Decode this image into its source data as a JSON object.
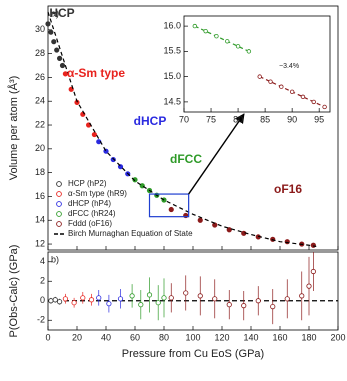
{
  "chart_data": [
    {
      "type": "scatter",
      "panel_label": "a)",
      "y_label": "Volume per atom (Å³)",
      "xlim": [
        0,
        200
      ],
      "xticks": [
        0,
        20,
        40,
        60,
        80,
        100,
        120,
        140,
        160,
        180,
        200
      ],
      "ylim": [
        11.5,
        32
      ],
      "yticks": [
        12,
        14,
        16,
        18,
        20,
        22,
        24,
        26,
        28,
        30
      ],
      "legend": "lower left",
      "annotations": [
        "HCP",
        "α-Sm type",
        "dHCP",
        "dFCC",
        "oF16"
      ],
      "series": [
        {
          "name": "HCP (hP2)",
          "color": "#333333",
          "marker": "circle",
          "x": [
            0,
            2,
            4,
            6,
            8,
            10
          ],
          "values": [
            30.5,
            29.8,
            29.0,
            28.3,
            27.6,
            27.0
          ]
        },
        {
          "name": "α-Sm type (hR9)",
          "color": "#e8231e",
          "marker": "circle",
          "x": [
            12,
            16,
            20,
            24,
            28,
            32
          ],
          "values": [
            26.3,
            25.0,
            23.9,
            22.9,
            22.0,
            21.2
          ]
        },
        {
          "name": "dHCP (hP4)",
          "color": "#2a2ae0",
          "marker": "circle",
          "x": [
            35,
            40,
            45,
            50,
            55
          ],
          "values": [
            20.6,
            19.8,
            19.1,
            18.5,
            17.9
          ]
        },
        {
          "name": "dFCC (hR24)",
          "color": "#2e9a28",
          "marker": "circle",
          "x": [
            60,
            65,
            70,
            75,
            80
          ],
          "values": [
            17.4,
            16.9,
            16.5,
            16.1,
            15.7
          ]
        },
        {
          "name": "Fddd (oF16)",
          "color": "#8b1a1a",
          "marker": "circle",
          "x": [
            85,
            95,
            105,
            115,
            125,
            135,
            145,
            155,
            165,
            175,
            183
          ],
          "values": [
            14.9,
            14.4,
            14.0,
            13.6,
            13.2,
            12.9,
            12.6,
            12.4,
            12.2,
            12.0,
            11.9
          ]
        },
        {
          "name": "Birch Murnaghan Equation of State",
          "color": "#000000",
          "line": "dashed",
          "x": [
            0,
            20,
            40,
            60,
            80,
            100,
            120,
            140,
            160,
            180,
            185
          ],
          "values": [
            31.5,
            24.0,
            19.8,
            17.3,
            15.7,
            14.5,
            13.5,
            12.8,
            12.2,
            11.9,
            11.8
          ]
        }
      ]
    },
    {
      "type": "scatter",
      "xlim": [
        70,
        97
      ],
      "xticks": [
        70,
        75,
        80,
        85,
        90,
        95
      ],
      "ylim": [
        14.3,
        16.2
      ],
      "yticks": [
        14.5,
        {
          "value": 15,
          "label": "15.0"
        },
        15.5,
        {
          "value": 16,
          "label": "16.0"
        }
      ],
      "annotation": "−3.4%",
      "series": [
        {
          "color": "#2e9a28",
          "marker": "circle",
          "line": "dashed",
          "x": [
            72,
            74,
            76,
            78,
            80,
            82
          ],
          "values": [
            16.0,
            15.9,
            15.8,
            15.7,
            15.6,
            15.5
          ]
        },
        {
          "color": "#8b1a1a",
          "marker": "circle",
          "line": "dashed",
          "x": [
            84,
            86,
            88,
            90,
            92,
            94,
            96
          ],
          "values": [
            15.0,
            14.9,
            14.8,
            14.7,
            14.6,
            14.5,
            14.4
          ]
        }
      ]
    },
    {
      "type": "errorbar",
      "panel_label": "b)",
      "x_label": "Pressure from Cu EoS (GPa)",
      "y_label": "P(Obs-Calc) (GPa)",
      "xlim": [
        0,
        200
      ],
      "xticks": [
        0,
        20,
        40,
        60,
        80,
        100,
        120,
        140,
        160,
        180,
        200
      ],
      "ylim": [
        -3,
        5
      ],
      "yticks": [
        -2,
        0,
        2,
        4
      ],
      "reference_line": 0,
      "series": [
        {
          "color": "#333333",
          "x": [
            2,
            5,
            8
          ],
          "values": [
            0,
            0.1,
            -0.1
          ],
          "errors": [
            0.3,
            0.3,
            0.3
          ]
        },
        {
          "color": "#e8231e",
          "x": [
            12,
            18,
            24,
            30
          ],
          "values": [
            0.2,
            -0.2,
            0.3,
            0.1
          ],
          "errors": [
            0.5,
            0.5,
            0.6,
            0.6
          ]
        },
        {
          "color": "#2a2ae0",
          "x": [
            35,
            42,
            50
          ],
          "values": [
            0.3,
            -0.3,
            0.2
          ],
          "errors": [
            0.8,
            0.9,
            1.0
          ]
        },
        {
          "color": "#2e9a28",
          "x": [
            58,
            64,
            70,
            76,
            80
          ],
          "values": [
            0.5,
            -0.4,
            0.6,
            -0.2,
            0.3
          ],
          "errors": [
            1.2,
            1.5,
            1.8,
            1.8,
            2.0
          ]
        },
        {
          "color": "#8b1a1a",
          "x": [
            85,
            95,
            105,
            115,
            125,
            135,
            145,
            155,
            165,
            175,
            180,
            183
          ],
          "values": [
            0.3,
            0.8,
            0.5,
            0.2,
            -0.4,
            -0.5,
            0,
            -0.6,
            0.2,
            0.5,
            1.5,
            3.0
          ],
          "errors": [
            1.5,
            1.8,
            2,
            2,
            1.5,
            1.5,
            1.5,
            1.8,
            2,
            2.5,
            3,
            2
          ]
        }
      ]
    }
  ]
}
